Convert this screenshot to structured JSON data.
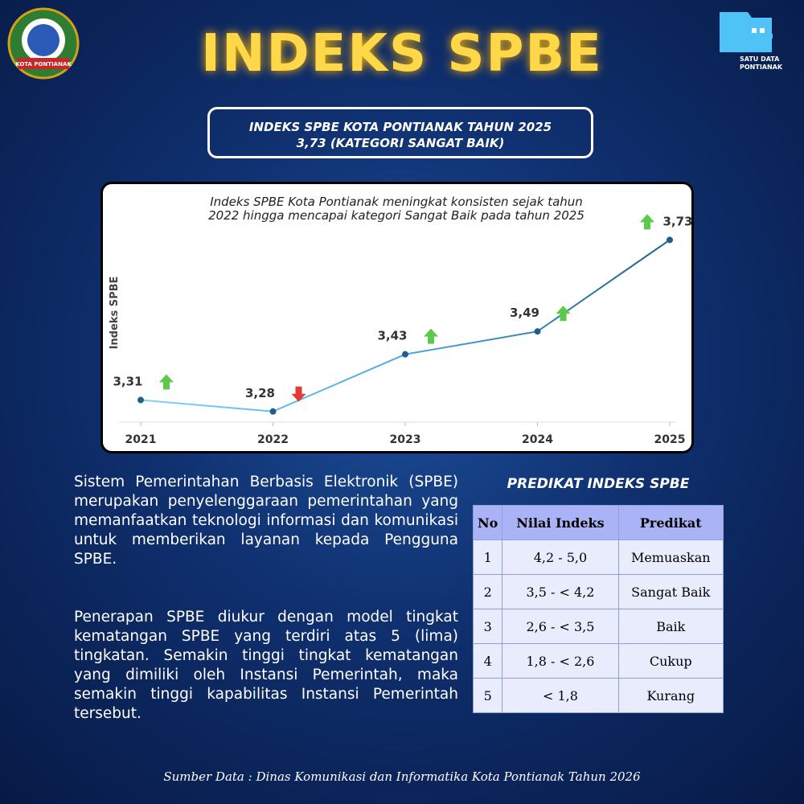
{
  "logo_left": "KOTA PONTIANAK",
  "logo_right": {
    "line1": "SATU DATA",
    "line2": "PONTIANAK"
  },
  "header": {
    "title": "INDEKS SPBE",
    "subtitle_line1": "INDEKS SPBE KOTA PONTIANAK TAHUN 2025",
    "subtitle_line2": "3,73 (KATEGORI SANGAT BAIK)"
  },
  "chart_data": {
    "type": "line",
    "annotation_line1": "Indeks SPBE Kota Pontianak meningkat konsisten sejak tahun",
    "annotation_line2": "2022 hingga mencapai kategori Sangat Baik pada tahun 2025",
    "y_label": "Indeks SPBE",
    "categories": [
      "2021",
      "2022",
      "2023",
      "2024",
      "2025"
    ],
    "series": [
      {
        "name": "Indeks SPBE",
        "color": "#1f5f8b",
        "values": [
          3.31,
          3.28,
          3.43,
          3.49,
          3.73
        ],
        "value_labels": [
          "3,31",
          "3,28",
          "3,43",
          "3,49",
          "3,73"
        ],
        "arrows": [
          "up",
          "down",
          "up",
          "up",
          "up"
        ]
      }
    ],
    "ylim": [
      3.25,
      3.83
    ]
  },
  "body": {
    "paragraph1": "Sistem Pemerintahan Berbasis Elektronik (SPBE) merupakan penyelenggaraan pemerintahan yang memanfaatkan teknologi informasi dan komunikasi untuk memberikan layanan kepada Pengguna SPBE.",
    "paragraph2": "Penerapan SPBE diukur dengan model tingkat kematangan SPBE yang terdiri atas 5 (lima) tingkatan. Semakin tinggi tingkat kematangan yang dimiliki oleh Instansi Pemerintah, maka semakin tinggi kapabilitas Instansi Pemerintah tersebut."
  },
  "table": {
    "title": "PREDIKAT INDEKS SPBE",
    "header": [
      "No",
      "Nilai Indeks",
      "Predikat"
    ],
    "rows": [
      [
        "1",
        "4,2 - 5,0",
        "Memuaskan"
      ],
      [
        "2",
        "3,5 - < 4,2",
        "Sangat Baik"
      ],
      [
        "3",
        "2,6 - < 3,5",
        "Baik"
      ],
      [
        "4",
        "1,8 - < 2,6",
        "Cukup"
      ],
      [
        "5",
        "< 1,8",
        "Kurang"
      ]
    ]
  },
  "source": "Sumber Data : Dinas Komunikasi dan Informatika Kota Pontianak Tahun 2026"
}
